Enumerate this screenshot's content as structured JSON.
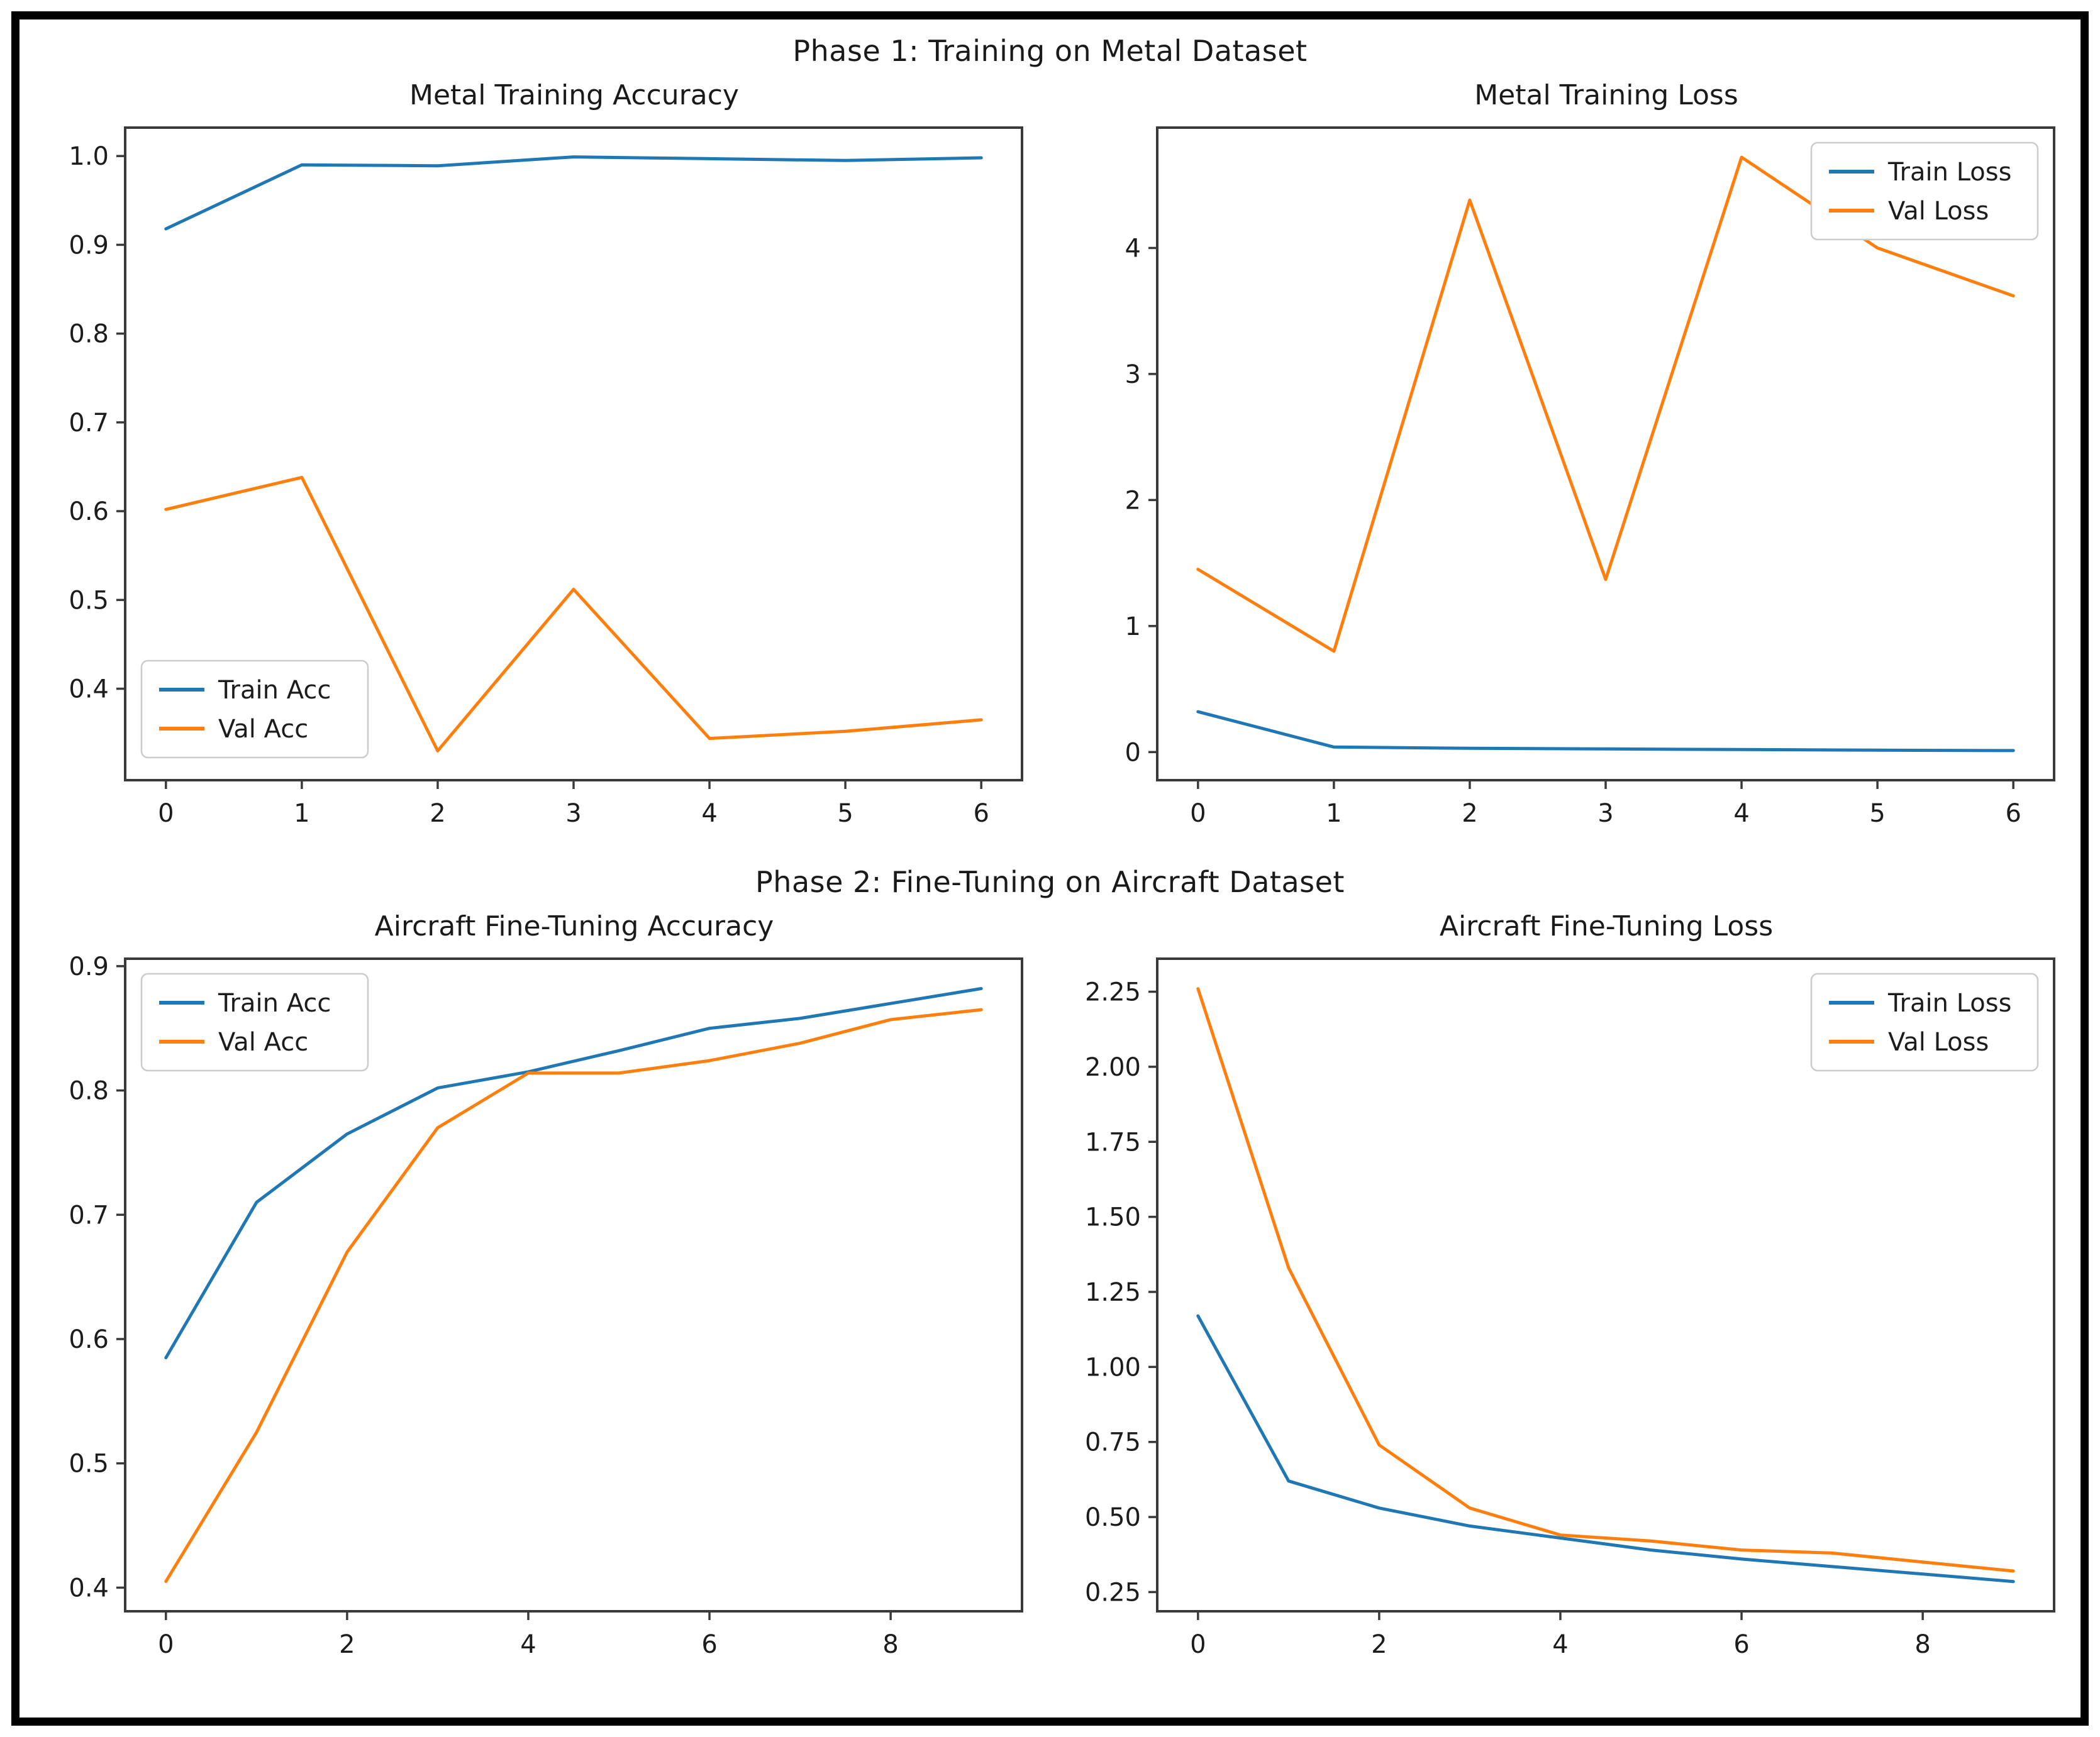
{
  "figure": {
    "sections": [
      {
        "suptitle": "Phase 1: Training on Metal Dataset"
      },
      {
        "suptitle": "Phase 2: Fine-Tuning on Aircraft Dataset"
      }
    ]
  },
  "colors": {
    "train_line": "#1f77b4",
    "val_line": "#ff7f0e",
    "spine": "#3a3a3a",
    "frame_border": "#000000",
    "legend_border": "#cccccc",
    "background": "#ffffff"
  },
  "chart_data": [
    {
      "type": "line",
      "title": "Metal Training Accuracy",
      "x": [
        0,
        1,
        2,
        3,
        4,
        5,
        6
      ],
      "series": [
        {
          "name": "Train Acc",
          "color": "#1f77b4",
          "values": [
            0.918,
            0.99,
            0.989,
            0.999,
            0.997,
            0.995,
            0.998
          ]
        },
        {
          "name": "Val Acc",
          "color": "#ff7f0e",
          "values": [
            0.602,
            0.638,
            0.33,
            0.512,
            0.344,
            0.352,
            0.365
          ]
        }
      ],
      "xlim": [
        -0.3,
        6.3
      ],
      "ylim": [
        0.297,
        1.032
      ],
      "xticks": [
        0,
        1,
        2,
        3,
        4,
        5,
        6
      ],
      "xtick_labels": [
        "0",
        "1",
        "2",
        "3",
        "4",
        "5",
        "6"
      ],
      "yticks": [
        0.4,
        0.5,
        0.6,
        0.7,
        0.8,
        0.9,
        1.0
      ],
      "ytick_labels": [
        "0.4",
        "0.5",
        "0.6",
        "0.7",
        "0.8",
        "0.9",
        "1.0"
      ],
      "legend_position": "lower-left",
      "grid": false
    },
    {
      "type": "line",
      "title": "Metal Training Loss",
      "x": [
        0,
        1,
        2,
        3,
        4,
        5,
        6
      ],
      "series": [
        {
          "name": "Train Loss",
          "color": "#1f77b4",
          "values": [
            0.32,
            0.04,
            0.03,
            0.025,
            0.02,
            0.015,
            0.012
          ]
        },
        {
          "name": "Val Loss",
          "color": "#ff7f0e",
          "values": [
            1.45,
            0.8,
            4.38,
            1.37,
            4.72,
            4.0,
            3.62
          ]
        }
      ],
      "xlim": [
        -0.3,
        6.3
      ],
      "ylim": [
        -0.223,
        4.955
      ],
      "xticks": [
        0,
        1,
        2,
        3,
        4,
        5,
        6
      ],
      "xtick_labels": [
        "0",
        "1",
        "2",
        "3",
        "4",
        "5",
        "6"
      ],
      "yticks": [
        0,
        1,
        2,
        3,
        4
      ],
      "ytick_labels": [
        "0",
        "1",
        "2",
        "3",
        "4"
      ],
      "legend_position": "upper-right",
      "grid": false
    },
    {
      "type": "line",
      "title": "Aircraft Fine-Tuning Accuracy",
      "x": [
        0,
        1,
        2,
        3,
        4,
        5,
        6,
        7,
        8,
        9
      ],
      "series": [
        {
          "name": "Train Acc",
          "color": "#1f77b4",
          "values": [
            0.585,
            0.71,
            0.765,
            0.802,
            0.815,
            0.832,
            0.85,
            0.858,
            0.87,
            0.882
          ]
        },
        {
          "name": "Val Acc",
          "color": "#ff7f0e",
          "values": [
            0.405,
            0.525,
            0.67,
            0.77,
            0.814,
            0.814,
            0.824,
            0.838,
            0.857,
            0.865
          ]
        }
      ],
      "xlim": [
        -0.45,
        9.45
      ],
      "ylim": [
        0.381,
        0.906
      ],
      "xticks": [
        0,
        2,
        4,
        6,
        8
      ],
      "xtick_labels": [
        "0",
        "2",
        "4",
        "6",
        "8"
      ],
      "yticks": [
        0.4,
        0.5,
        0.6,
        0.7,
        0.8,
        0.9
      ],
      "ytick_labels": [
        "0.4",
        "0.5",
        "0.6",
        "0.7",
        "0.8",
        "0.9"
      ],
      "legend_position": "upper-left",
      "grid": false
    },
    {
      "type": "line",
      "title": "Aircraft Fine-Tuning Loss",
      "x": [
        0,
        1,
        2,
        3,
        4,
        5,
        6,
        7,
        8,
        9
      ],
      "series": [
        {
          "name": "Train Loss",
          "color": "#1f77b4",
          "values": [
            1.17,
            0.62,
            0.53,
            0.47,
            0.43,
            0.39,
            0.36,
            0.335,
            0.31,
            0.285
          ]
        },
        {
          "name": "Val Loss",
          "color": "#ff7f0e",
          "values": [
            2.26,
            1.33,
            0.74,
            0.53,
            0.44,
            0.42,
            0.39,
            0.38,
            0.35,
            0.32
          ]
        }
      ],
      "xlim": [
        -0.45,
        9.45
      ],
      "ylim": [
        0.186,
        2.36
      ],
      "xticks": [
        0,
        2,
        4,
        6,
        8
      ],
      "xtick_labels": [
        "0",
        "2",
        "4",
        "6",
        "8"
      ],
      "yticks": [
        0.25,
        0.5,
        0.75,
        1.0,
        1.25,
        1.5,
        1.75,
        2.0,
        2.25
      ],
      "ytick_labels": [
        "0.25",
        "0.50",
        "0.75",
        "1.00",
        "1.25",
        "1.50",
        "1.75",
        "2.00",
        "2.25"
      ],
      "legend_position": "upper-right",
      "grid": false
    }
  ]
}
